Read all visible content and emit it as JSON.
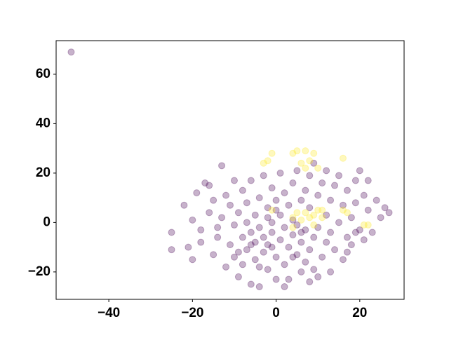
{
  "chart_data": {
    "type": "scatter",
    "xlim": [
      -52.6,
      30.6
    ],
    "ylim": [
      -31.1,
      73.6
    ],
    "xticks": [
      {
        "value": -40,
        "label": "−40"
      },
      {
        "value": -20,
        "label": "−20"
      },
      0,
      20
    ],
    "yticks": [
      {
        "value": -20,
        "label": "−20"
      },
      0,
      20,
      40,
      60
    ],
    "series": [
      {
        "color": "#440154",
        "x": [
          -49,
          -25,
          -25,
          -22,
          -21,
          -20,
          -20,
          -19,
          -18,
          -18,
          -17,
          -16,
          -16,
          -15,
          -15,
          -14,
          -14,
          -13,
          -13,
          -12,
          -12,
          -11,
          -11,
          -10,
          -10,
          -10,
          -9,
          -9,
          -8,
          -8,
          -8,
          -7,
          -7,
          -7,
          -6,
          -6,
          -6,
          -5,
          -5,
          -5,
          -4,
          -4,
          -4,
          -3,
          -3,
          -3,
          -2,
          -2,
          -2,
          -1,
          -1,
          -1,
          0,
          0,
          0,
          1,
          1,
          1,
          2,
          2,
          2,
          3,
          3,
          3,
          4,
          4,
          4,
          5,
          5,
          5,
          6,
          6,
          6,
          7,
          7,
          7,
          8,
          8,
          8,
          9,
          9,
          9,
          10,
          10,
          11,
          11,
          12,
          12,
          12,
          13,
          13,
          14,
          14,
          15,
          15,
          16,
          16,
          17,
          17,
          18,
          18,
          19,
          19,
          20,
          20,
          21,
          21,
          22,
          22,
          23,
          24,
          25,
          26,
          27,
          -9,
          -4,
          2,
          -1,
          4,
          6,
          -6,
          -2,
          0,
          8,
          13,
          10,
          17,
          19
        ],
        "y": [
          69,
          -4,
          -11,
          7,
          -10,
          -15,
          1,
          12,
          -3,
          -8,
          16,
          15,
          4,
          -13,
          9,
          -6,
          -2,
          23,
          2,
          -18,
          11,
          -9,
          7,
          -14,
          17,
          -1,
          -22,
          4,
          -6,
          13,
          -17,
          8,
          -11,
          0,
          -25,
          -4,
          17,
          -8,
          3,
          -15,
          -26,
          10,
          -2,
          19,
          -6,
          -12,
          6,
          -19,
          -9,
          0,
          14,
          -4,
          -23,
          9,
          -14,
          3,
          -7,
          20,
          -2,
          -17,
          12,
          -10,
          7,
          -23,
          -5,
          16,
          1,
          -13,
          21,
          -1,
          -20,
          9,
          -8,
          13,
          -3,
          -16,
          19,
          -11,
          6,
          -6,
          24,
          -19,
          11,
          -2,
          -14,
          16,
          3,
          -8,
          21,
          -4,
          9,
          -11,
          15,
          0,
          19,
          -15,
          7,
          -6,
          13,
          2,
          -9,
          17,
          8,
          -3,
          21,
          11,
          -7,
          5,
          17,
          -4,
          9,
          2,
          6,
          4,
          -12,
          -18,
          -26,
          -10,
          -14,
          -4,
          -9,
          2,
          5,
          -24,
          -20,
          -22,
          -12,
          -4
        ]
      },
      {
        "color": "#fde725",
        "x": [
          -1,
          4,
          5,
          6,
          7,
          8,
          9,
          10,
          -1,
          -3,
          4,
          5,
          6,
          7,
          8,
          9,
          10,
          11,
          4,
          16,
          16,
          17,
          21,
          22,
          9,
          11,
          -2,
          7
        ],
        "y": [
          5,
          28,
          29,
          24,
          29,
          25,
          28,
          22,
          28,
          24,
          2,
          4,
          1,
          4,
          2,
          3,
          5,
          2,
          -2,
          26,
          5,
          4,
          -1,
          -1,
          -1,
          5,
          25,
          22
        ]
      }
    ]
  }
}
